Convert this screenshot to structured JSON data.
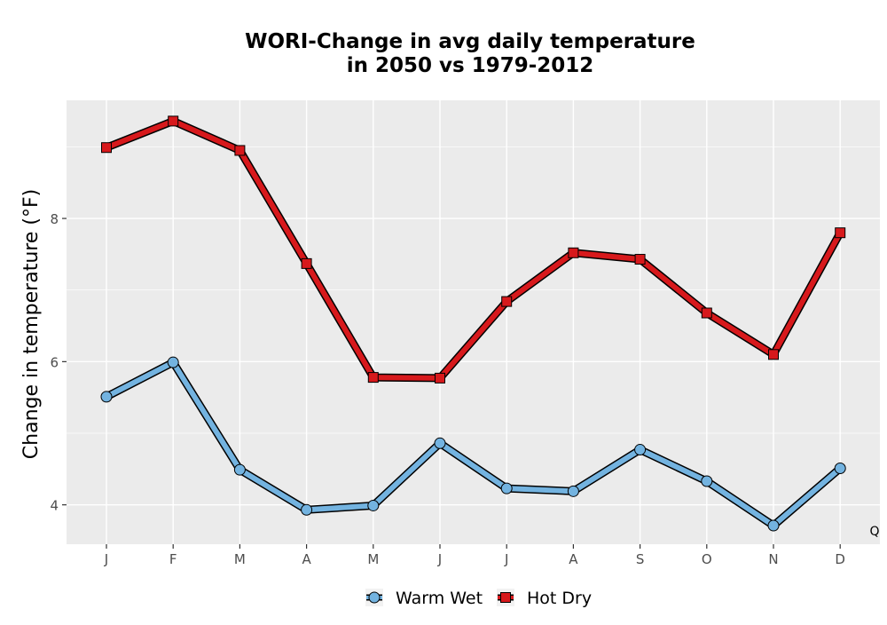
{
  "chart_data": {
    "type": "line",
    "title_line1": "WORI-Change in avg daily temperature",
    "title_line2": "in 2050 vs 1979-2012",
    "xlabel": "",
    "ylabel": "Change in temperature (°F)",
    "corner_label": "Q",
    "categories": [
      "J",
      "F",
      "M",
      "A",
      "M",
      "J",
      "J",
      "A",
      "S",
      "O",
      "N",
      "D"
    ],
    "ylim": [
      3.45,
      9.65
    ],
    "yticks": [
      4,
      6,
      8
    ],
    "grid": true,
    "legend_position": "bottom",
    "series": [
      {
        "name": "Warm Wet",
        "marker": "circle",
        "color": "#73b3e0",
        "values": [
          5.51,
          5.99,
          4.49,
          3.93,
          3.99,
          4.86,
          4.23,
          4.19,
          4.77,
          4.33,
          3.71,
          4.51
        ]
      },
      {
        "name": "Hot Dry",
        "marker": "square",
        "color": "#d7191c",
        "values": [
          8.99,
          9.36,
          8.95,
          7.37,
          5.78,
          5.77,
          6.84,
          7.52,
          7.43,
          6.68,
          6.1,
          7.8
        ]
      }
    ]
  }
}
